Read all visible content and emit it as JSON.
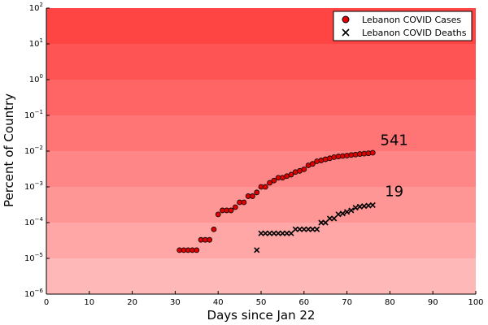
{
  "chart_data": {
    "type": "scatter",
    "title": "",
    "xlabel": "Days since Jan 22",
    "ylabel": "Percent of Country",
    "xlim": [
      0,
      100
    ],
    "ylim": [
      1e-06,
      100
    ],
    "yscale": "log",
    "grid": false,
    "legend_position": "top-right",
    "background_bands": {
      "color": "#ff0000",
      "description": "horizontal red bands per decade, darker toward the top"
    },
    "x_ticks": [
      0,
      10,
      20,
      30,
      40,
      50,
      60,
      70,
      80,
      90,
      100
    ],
    "x_tick_labels": [
      "0",
      "10",
      "20",
      "30",
      "40",
      "50",
      "60",
      "70",
      "80",
      "90",
      "100"
    ],
    "y_ticks": [
      1e-06,
      1e-05,
      0.0001,
      0.001,
      0.01,
      0.1,
      1,
      10,
      100
    ],
    "y_tick_labels": [
      {
        "base": "10",
        "exp": "−6"
      },
      {
        "base": "10",
        "exp": "−5"
      },
      {
        "base": "10",
        "exp": "−4"
      },
      {
        "base": "10",
        "exp": "−3"
      },
      {
        "base": "10",
        "exp": "−2"
      },
      {
        "base": "10",
        "exp": "−1"
      },
      {
        "base": "10",
        "exp": "0"
      },
      {
        "base": "10",
        "exp": "1"
      },
      {
        "base": "10",
        "exp": "2"
      }
    ],
    "series": [
      {
        "name": "Lebanon COVID Cases",
        "marker": "circle",
        "color": "#e00000",
        "x": [
          31,
          32,
          33,
          34,
          35,
          36,
          37,
          38,
          39,
          40,
          41,
          42,
          43,
          44,
          45,
          46,
          47,
          48,
          49,
          50,
          51,
          52,
          53,
          54,
          55,
          56,
          57,
          58,
          59,
          60,
          61,
          62,
          63,
          64,
          65,
          66,
          67,
          68,
          69,
          70,
          71,
          72,
          73,
          74,
          75,
          76
        ],
        "y": [
          1.7e-05,
          1.7e-05,
          1.7e-05,
          1.7e-05,
          1.7e-05,
          3.3e-05,
          3.3e-05,
          3.3e-05,
          6.5e-05,
          0.00017,
          0.00022,
          0.00022,
          0.00022,
          0.00027,
          0.00037,
          0.00037,
          0.00055,
          0.00055,
          0.0007,
          0.001,
          0.001,
          0.0013,
          0.0015,
          0.0018,
          0.0018,
          0.002,
          0.0022,
          0.0026,
          0.0028,
          0.0031,
          0.004,
          0.0044,
          0.0052,
          0.0055,
          0.0059,
          0.0063,
          0.0068,
          0.0071,
          0.0073,
          0.0075,
          0.0078,
          0.008,
          0.0083,
          0.0085,
          0.0087,
          0.009
        ]
      },
      {
        "name": "Lebanon COVID Deaths",
        "marker": "x",
        "color": "#000000",
        "x": [
          49,
          50,
          51,
          52,
          53,
          54,
          55,
          56,
          57,
          58,
          59,
          60,
          61,
          62,
          63,
          64,
          65,
          66,
          67,
          68,
          69,
          70,
          71,
          72,
          73,
          74,
          75,
          76
        ],
        "y": [
          1.7e-05,
          5e-05,
          5e-05,
          5e-05,
          5e-05,
          5e-05,
          5e-05,
          5e-05,
          5e-05,
          6.5e-05,
          6.5e-05,
          6.5e-05,
          6.5e-05,
          6.5e-05,
          6.5e-05,
          0.0001,
          0.0001,
          0.00013,
          0.00013,
          0.00017,
          0.00018,
          0.0002,
          0.00022,
          0.00026,
          0.00028,
          0.00029,
          0.0003,
          0.00031
        ]
      }
    ],
    "annotations": [
      {
        "text": "541",
        "x": 81,
        "y": 0.015
      },
      {
        "text": "19",
        "x": 81,
        "y": 0.00055
      }
    ]
  }
}
